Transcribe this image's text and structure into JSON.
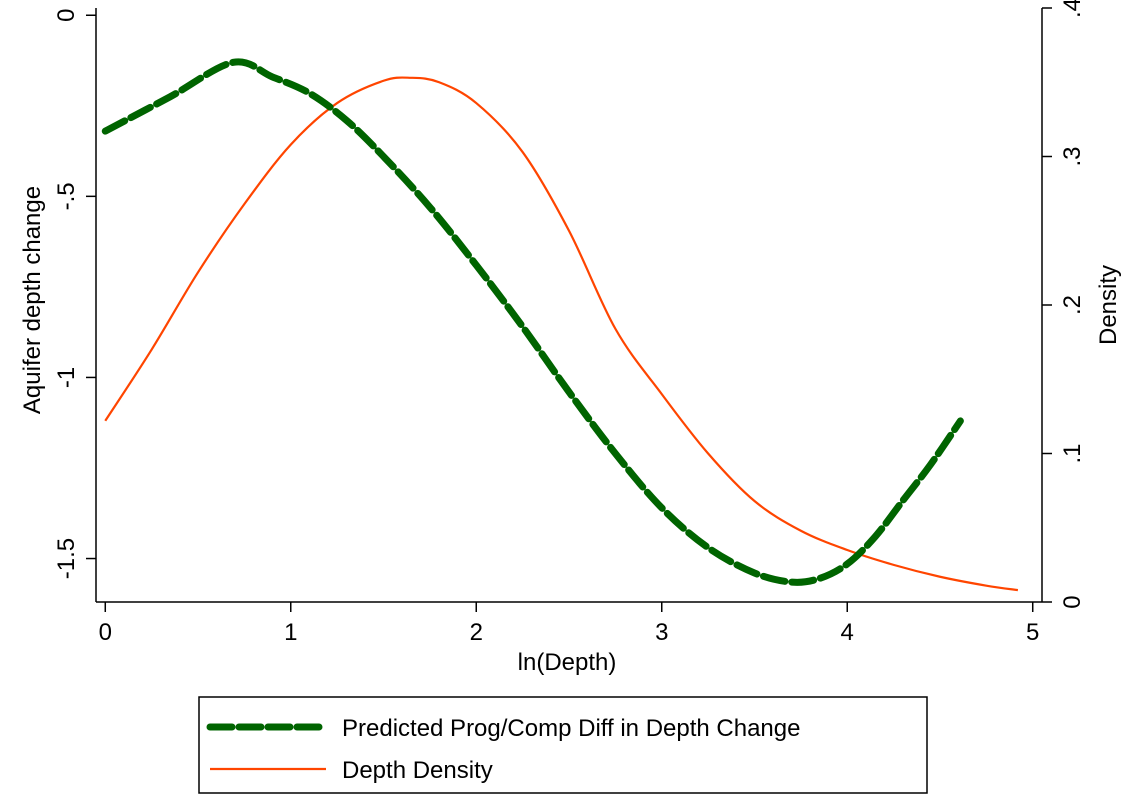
{
  "chart_data": {
    "type": "line",
    "xlabel": "ln(Depth)",
    "ylabel_left": "Aquifer depth change",
    "ylabel_right": "Density",
    "xlim": [
      -0.05,
      5.05
    ],
    "ylim_left": [
      -1.62,
      0.02
    ],
    "ylim_right": [
      0,
      0.4
    ],
    "x_ticks": [
      0,
      1,
      2,
      3,
      4,
      5
    ],
    "x_tick_labels": [
      "0",
      "1",
      "2",
      "3",
      "4",
      "5"
    ],
    "y_left_ticks": [
      0,
      -0.5,
      -1,
      -1.5
    ],
    "y_left_tick_labels": [
      "0",
      "-.5",
      "-1",
      "-1.5"
    ],
    "y_right_ticks": [
      0,
      0.1,
      0.2,
      0.3,
      0.4
    ],
    "y_right_tick_labels": [
      "0",
      ".1",
      ".2",
      ".3",
      ".4"
    ],
    "grid": false,
    "legend_position": "bottom",
    "series": [
      {
        "name": "Predicted Prog/Comp Diff in Depth Change",
        "axis": "left",
        "style": "dashed",
        "color": "#006400",
        "x": [
          0,
          0.35,
          0.69,
          0.9,
          1.1,
          1.3,
          1.5,
          1.75,
          2.0,
          2.25,
          2.5,
          2.75,
          3.0,
          3.25,
          3.5,
          3.7,
          3.85,
          4.0,
          4.15,
          4.3,
          4.45,
          4.61
        ],
        "y": [
          -0.32,
          -0.225,
          -0.13,
          -0.17,
          -0.215,
          -0.29,
          -0.39,
          -0.53,
          -0.69,
          -0.86,
          -1.04,
          -1.21,
          -1.36,
          -1.47,
          -1.54,
          -1.565,
          -1.555,
          -1.515,
          -1.44,
          -1.34,
          -1.24,
          -1.12
        ]
      },
      {
        "name": "Depth Density",
        "axis": "right",
        "color": "#ff4500",
        "x": [
          0,
          0.25,
          0.5,
          0.75,
          1.0,
          1.25,
          1.5,
          1.65,
          1.8,
          2.0,
          2.25,
          2.5,
          2.75,
          3.0,
          3.25,
          3.5,
          3.75,
          4.0,
          4.25,
          4.5,
          4.75,
          4.92
        ],
        "y": [
          0.122,
          0.17,
          0.222,
          0.268,
          0.308,
          0.336,
          0.351,
          0.353,
          0.35,
          0.336,
          0.303,
          0.25,
          0.184,
          0.14,
          0.1,
          0.068,
          0.048,
          0.035,
          0.025,
          0.017,
          0.011,
          0.008
        ]
      }
    ]
  }
}
